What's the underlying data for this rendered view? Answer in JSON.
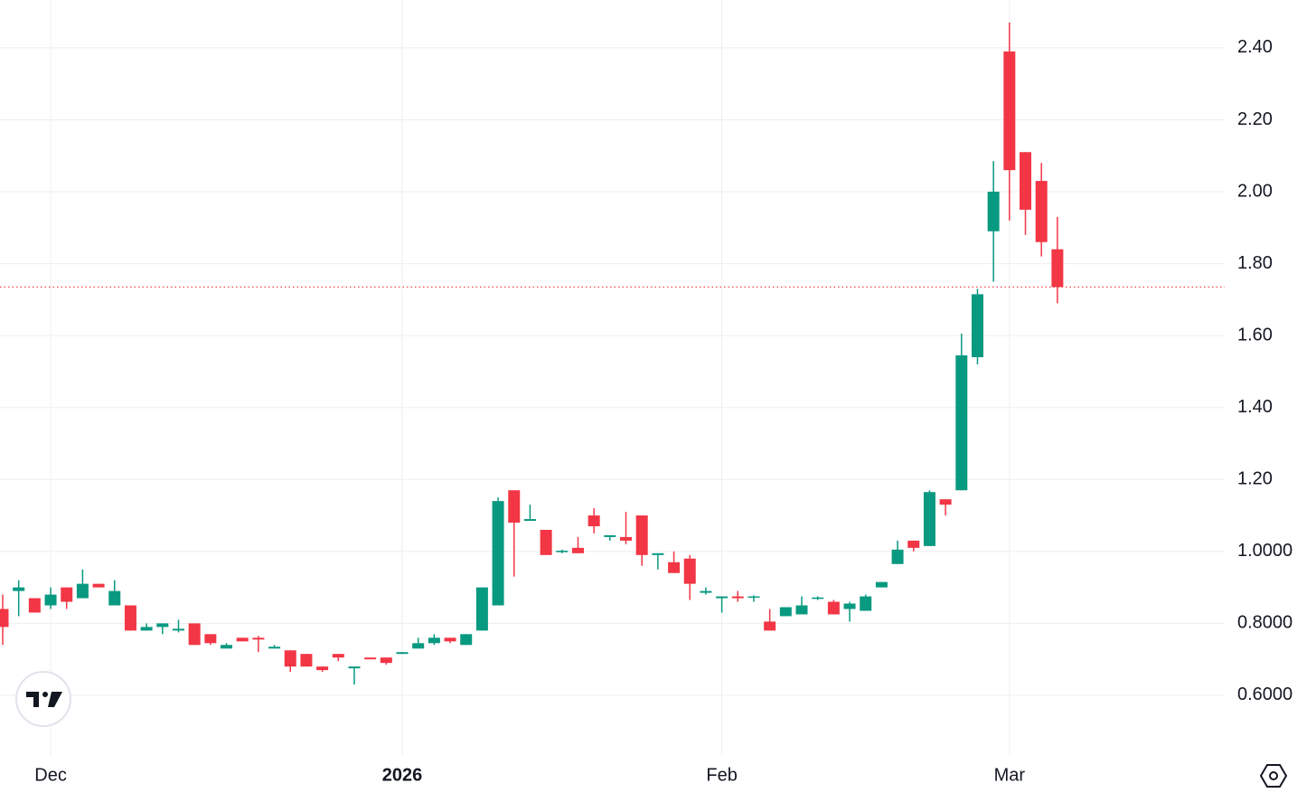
{
  "chart_data": {
    "type": "candlestick",
    "categories": [
      null,
      null,
      null,
      "Dec",
      null,
      null,
      null,
      null,
      null,
      null,
      null,
      null,
      null,
      null,
      null,
      null,
      null,
      null,
      null,
      null,
      null,
      null,
      null,
      null,
      null,
      "2026",
      null,
      null,
      null,
      null,
      null,
      null,
      null,
      null,
      null,
      null,
      null,
      null,
      null,
      null,
      null,
      null,
      null,
      null,
      null,
      "Feb",
      null,
      null,
      null,
      null,
      null,
      null,
      null,
      null,
      null,
      null,
      null,
      null,
      null,
      null,
      null,
      null,
      null,
      "Mar",
      null,
      null,
      null
    ],
    "open": [
      0.84,
      0.89,
      0.87,
      0.85,
      0.9,
      0.87,
      0.91,
      0.85,
      0.85,
      0.78,
      0.79,
      0.78,
      0.8,
      0.77,
      0.73,
      0.76,
      0.76,
      0.73,
      0.725,
      0.715,
      0.68,
      0.715,
      0.675,
      0.705,
      0.705,
      0.715,
      0.73,
      0.745,
      0.76,
      0.74,
      0.78,
      0.85,
      1.17,
      1.085,
      1.06,
      0.998,
      1.01,
      1.1,
      1.04,
      1.04,
      1.1,
      0.99,
      0.97,
      0.98,
      0.885,
      0.87,
      0.875,
      0.872,
      0.805,
      0.82,
      0.825,
      0.868,
      0.86,
      0.84,
      0.835,
      0.9,
      0.965,
      1.03,
      1.015,
      1.145,
      1.17,
      1.54,
      1.89,
      2.39,
      2.11,
      2.03,
      1.84
    ],
    "high": [
      0.88,
      0.92,
      0.87,
      0.9,
      0.9,
      0.95,
      0.91,
      0.92,
      0.85,
      0.8,
      0.8,
      0.81,
      0.8,
      0.77,
      0.745,
      0.76,
      0.765,
      0.74,
      0.725,
      0.715,
      0.68,
      0.715,
      0.68,
      0.705,
      0.705,
      0.72,
      0.76,
      0.77,
      0.76,
      0.77,
      0.9,
      1.15,
      1.17,
      1.13,
      1.06,
      1.005,
      1.04,
      1.12,
      1.045,
      1.11,
      1.1,
      0.995,
      1.0,
      0.99,
      0.9,
      0.875,
      0.89,
      0.878,
      0.84,
      0.845,
      0.875,
      0.875,
      0.865,
      0.86,
      0.88,
      0.915,
      1.03,
      1.03,
      1.17,
      1.145,
      1.605,
      1.73,
      2.085,
      2.47,
      2.11,
      2.08,
      1.93
    ],
    "low": [
      0.74,
      0.82,
      0.83,
      0.84,
      0.84,
      0.87,
      0.9,
      0.85,
      0.78,
      0.78,
      0.77,
      0.775,
      0.74,
      0.74,
      0.73,
      0.75,
      0.72,
      0.73,
      0.665,
      0.68,
      0.665,
      0.695,
      0.63,
      0.7,
      0.685,
      0.715,
      0.73,
      0.74,
      0.745,
      0.74,
      0.78,
      0.85,
      0.93,
      1.085,
      0.99,
      0.995,
      0.995,
      1.05,
      1.03,
      1.02,
      0.96,
      0.95,
      0.94,
      0.865,
      0.88,
      0.83,
      0.86,
      0.86,
      0.78,
      0.82,
      0.825,
      0.865,
      0.825,
      0.805,
      0.835,
      0.9,
      0.965,
      1.0,
      1.015,
      1.1,
      1.17,
      1.52,
      1.75,
      1.92,
      1.88,
      1.82,
      1.69
    ],
    "close": [
      0.79,
      0.9,
      0.83,
      0.88,
      0.86,
      0.91,
      0.9,
      0.89,
      0.78,
      0.79,
      0.8,
      0.785,
      0.74,
      0.745,
      0.74,
      0.75,
      0.755,
      0.735,
      0.68,
      0.68,
      0.67,
      0.705,
      0.68,
      0.7,
      0.69,
      0.72,
      0.745,
      0.76,
      0.75,
      0.77,
      0.9,
      1.14,
      1.08,
      1.09,
      0.99,
      1.002,
      0.995,
      1.07,
      1.045,
      1.03,
      0.99,
      0.995,
      0.94,
      0.91,
      0.89,
      0.875,
      0.87,
      0.875,
      0.78,
      0.845,
      0.85,
      0.872,
      0.825,
      0.855,
      0.875,
      0.915,
      1.005,
      1.01,
      1.165,
      1.13,
      1.545,
      1.715,
      2.0,
      2.06,
      1.95,
      1.86,
      1.735
    ],
    "ylim": [
      0.434,
      2.533
    ],
    "yticks": [
      {
        "value": 2.4,
        "label": "2.40"
      },
      {
        "value": 2.2,
        "label": "2.20"
      },
      {
        "value": 2.0,
        "label": "2.00"
      },
      {
        "value": 1.8,
        "label": "1.80"
      },
      {
        "value": 1.6,
        "label": "1.60"
      },
      {
        "value": 1.4,
        "label": "1.40"
      },
      {
        "value": 1.2,
        "label": "1.20"
      },
      {
        "value": 1.0,
        "label": "1.0000"
      },
      {
        "value": 0.8,
        "label": "0.8000"
      },
      {
        "value": 0.6,
        "label": "0.6000"
      }
    ],
    "grid": true,
    "up_color": "#089981",
    "down_color": "#f23645",
    "last_price_line": true
  }
}
